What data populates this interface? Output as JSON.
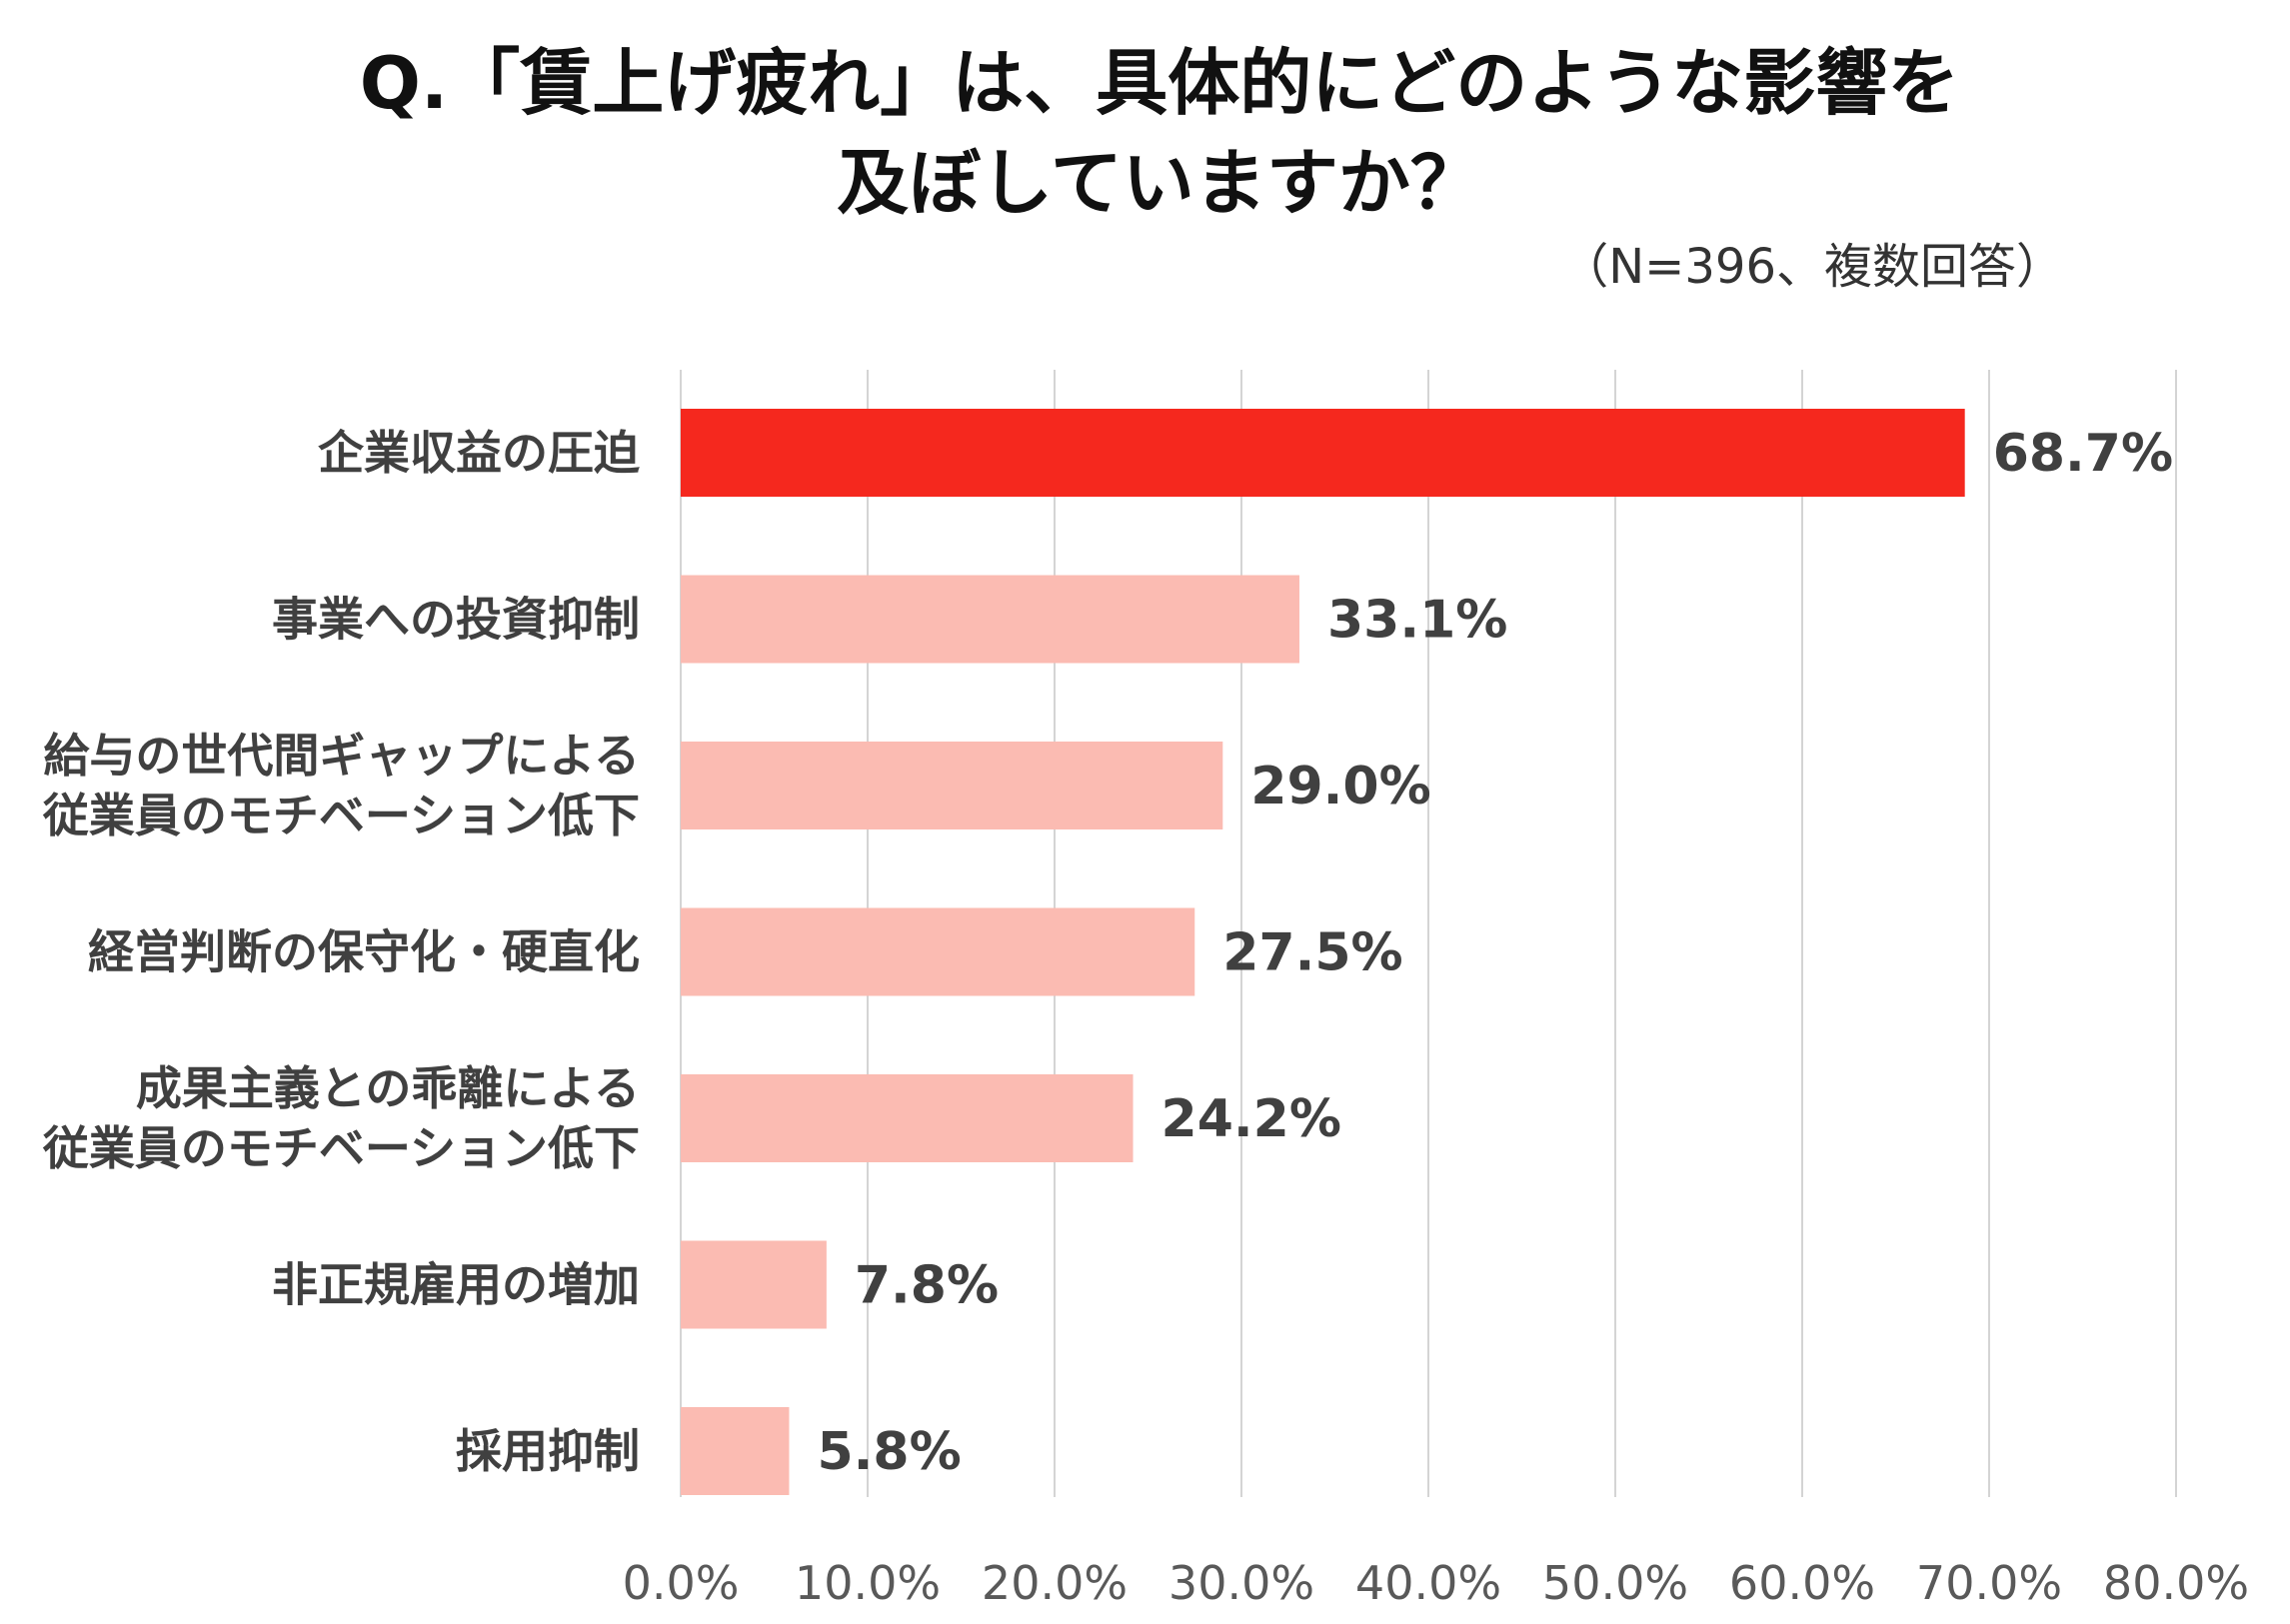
{
  "chart_data": {
    "type": "bar",
    "orientation": "horizontal",
    "title_lines": [
      "Q.「賃上げ疲れ」は、具体的にどのような影響を",
      "及ぼしていますか？"
    ],
    "subtitle": "（N=396、複数回答）",
    "categories": [
      [
        "企業収益の圧迫"
      ],
      [
        "事業への投資抑制"
      ],
      [
        "給与の世代間ギャップによる",
        "従業員のモチベーション低下"
      ],
      [
        "経営判断の保守化・硬直化"
      ],
      [
        "成果主義との乖離による",
        "従業員のモチベーション低下"
      ],
      [
        "非正規雇用の増加"
      ],
      [
        "採用抑制"
      ]
    ],
    "values": [
      68.7,
      33.1,
      29.0,
      27.5,
      24.2,
      7.8,
      5.8
    ],
    "value_labels": [
      "68.7%",
      "33.1%",
      "29.0%",
      "27.5%",
      "24.2%",
      "7.8%",
      "5.8%"
    ],
    "xlim": [
      0,
      80
    ],
    "xticks": [
      0,
      10,
      20,
      30,
      40,
      50,
      60,
      70,
      80
    ],
    "xtick_labels": [
      "0.0%",
      "10.0%",
      "20.0%",
      "30.0%",
      "40.0%",
      "50.0%",
      "60.0%",
      "70.0%",
      "80.0%"
    ],
    "grid": "vertical",
    "colors": {
      "highlight": "#f5281e",
      "bar": "#fbbbb2",
      "grid": "#d4d4d4",
      "title": "#111111",
      "text": "#404040",
      "tick": "#595959"
    }
  }
}
